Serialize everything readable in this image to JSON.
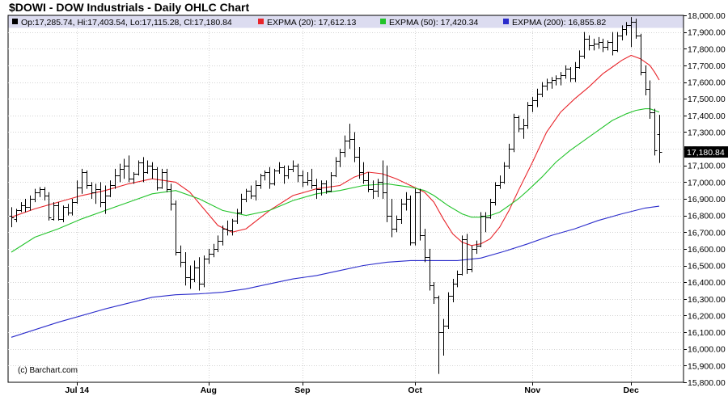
{
  "chart_data": {
    "type": "ohlc",
    "title": "$DOWI - DOW Industrials - Daily OHLC Chart",
    "credit": "(c) Barchart.com",
    "legend": {
      "ohlc": "Op:17,285.74, Hi:17,403.54, Lo:17,115.28, Cl:17,180.84",
      "series_labels": [
        "EXPMA (20): 17,612.13",
        "EXPMA (50): 17,420.34",
        "EXPMA (200): 16,855.82"
      ]
    },
    "colors": {
      "background": "#ffffff",
      "legend_bar": "#dcdcf0",
      "grid": "#d3d3d3",
      "ohlc_bar": "#000000",
      "expma20": "#e8242a",
      "expma50": "#22c32a",
      "expma200": "#2b2ccb",
      "last_price_bg": "#000000"
    },
    "y_axis": {
      "min": 15800,
      "max": 18000,
      "step": 100,
      "position": "right",
      "tick_labels": [
        "18,000.00",
        "17,900.00",
        "17,800.00",
        "17,700.00",
        "17,600.00",
        "17,500.00",
        "17,400.00",
        "17,300.00",
        "17,200.00",
        "17,100.00",
        "17,000.00",
        "16,900.00",
        "16,800.00",
        "16,700.00",
        "16,600.00",
        "16,500.00",
        "16,400.00",
        "16,300.00",
        "16,200.00",
        "16,100.00",
        "16,000.00",
        "15,900.00",
        "15,800.00"
      ]
    },
    "x_axis": {
      "labels": [
        {
          "text": "Jul 14",
          "bar": 14
        },
        {
          "text": "Aug",
          "bar": 42
        },
        {
          "text": "Sep",
          "bar": 62
        },
        {
          "text": "Oct",
          "bar": 86
        },
        {
          "text": "Nov",
          "bar": 111
        },
        {
          "text": "Dec",
          "bar": 132
        }
      ]
    },
    "last_price_label": "17,180.84",
    "grid": true,
    "ohlc": [
      [
        16800,
        16850,
        16730,
        16790
      ],
      [
        16780,
        16840,
        16760,
        16830
      ],
      [
        16830,
        16880,
        16820,
        16860
      ],
      [
        16860,
        16900,
        16820,
        16850
      ],
      [
        16850,
        16920,
        16830,
        16900
      ],
      [
        16900,
        16960,
        16880,
        16940
      ],
      [
        16940,
        16970,
        16910,
        16960
      ],
      [
        16960,
        16970,
        16890,
        16920
      ],
      [
        16920,
        16940,
        16770,
        16790
      ],
      [
        16780,
        16880,
        16770,
        16860
      ],
      [
        16860,
        16880,
        16770,
        16780
      ],
      [
        16780,
        16860,
        16760,
        16850
      ],
      [
        16850,
        16870,
        16800,
        16820
      ],
      [
        16820,
        16900,
        16800,
        16880
      ],
      [
        16880,
        17010,
        16870,
        16970
      ],
      [
        16970,
        17080,
        16930,
        17060
      ],
      [
        17060,
        17070,
        16960,
        16980
      ],
      [
        16980,
        17000,
        16900,
        16940
      ],
      [
        16940,
        16990,
        16870,
        16960
      ],
      [
        16960,
        17000,
        16850,
        16880
      ],
      [
        16880,
        16980,
        16810,
        16920
      ],
      [
        16920,
        17010,
        16910,
        16980
      ],
      [
        16980,
        17080,
        16960,
        17040
      ],
      [
        17040,
        17110,
        17000,
        17080
      ],
      [
        17080,
        17140,
        17020,
        17100
      ],
      [
        17100,
        17160,
        17000,
        17020
      ],
      [
        17020,
        17060,
        16990,
        17050
      ],
      [
        17050,
        17130,
        17040,
        17120
      ],
      [
        17120,
        17150,
        17000,
        17060
      ],
      [
        17060,
        17130,
        17050,
        17100
      ],
      [
        17100,
        17120,
        17020,
        17080
      ],
      [
        17080,
        17090,
        16950,
        16970
      ],
      [
        16970,
        17080,
        16960,
        17060
      ],
      [
        17060,
        17080,
        16940,
        16960
      ],
      [
        16960,
        16990,
        16830,
        16870
      ],
      [
        16870,
        16890,
        16560,
        16580
      ],
      [
        16580,
        16620,
        16490,
        16520
      ],
      [
        16520,
        16580,
        16380,
        16430
      ],
      [
        16430,
        16500,
        16360,
        16420
      ],
      [
        16420,
        16530,
        16400,
        16490
      ],
      [
        16490,
        16550,
        16350,
        16390
      ],
      [
        16390,
        16560,
        16370,
        16540
      ],
      [
        16540,
        16600,
        16510,
        16570
      ],
      [
        16570,
        16630,
        16550,
        16600
      ],
      [
        16600,
        16680,
        16580,
        16650
      ],
      [
        16650,
        16740,
        16620,
        16720
      ],
      [
        16720,
        16770,
        16680,
        16710
      ],
      [
        16710,
        16780,
        16680,
        16770
      ],
      [
        16770,
        16840,
        16750,
        16820
      ],
      [
        16820,
        16930,
        16810,
        16900
      ],
      [
        16900,
        16960,
        16880,
        16950
      ],
      [
        16950,
        16980,
        16900,
        16920
      ],
      [
        16920,
        17010,
        16890,
        16980
      ],
      [
        16980,
        17050,
        16960,
        17040
      ],
      [
        17040,
        17070,
        17010,
        17060
      ],
      [
        17060,
        17090,
        16960,
        16990
      ],
      [
        16990,
        17080,
        16980,
        17070
      ],
      [
        17070,
        17120,
        17050,
        17090
      ],
      [
        17090,
        17100,
        16990,
        17040
      ],
      [
        17040,
        17100,
        17020,
        17080
      ],
      [
        17080,
        17130,
        17060,
        17100
      ],
      [
        17100,
        17110,
        17000,
        17040
      ],
      [
        17040,
        17070,
        16970,
        17000
      ],
      [
        17000,
        17060,
        16980,
        17010
      ],
      [
        17010,
        17080,
        16960,
        16980
      ],
      [
        16980,
        17020,
        16900,
        16960
      ],
      [
        16960,
        17010,
        16920,
        16990
      ],
      [
        16990,
        17010,
        16930,
        16950
      ],
      [
        16950,
        17060,
        16940,
        17040
      ],
      [
        17040,
        17150,
        17030,
        17130
      ],
      [
        17130,
        17200,
        17090,
        17180
      ],
      [
        17180,
        17280,
        17150,
        17250
      ],
      [
        17250,
        17350,
        17200,
        17260
      ],
      [
        17260,
        17300,
        17120,
        17150
      ],
      [
        17150,
        17210,
        17020,
        17060
      ],
      [
        17060,
        17120,
        16990,
        17010
      ],
      [
        17010,
        17060,
        16940,
        16960
      ],
      [
        16960,
        17010,
        16900,
        16950
      ],
      [
        16950,
        17020,
        16910,
        17000
      ],
      [
        17000,
        17130,
        16900,
        16940
      ],
      [
        16940,
        17100,
        16760,
        16800
      ],
      [
        16800,
        16900,
        16670,
        16720
      ],
      [
        16720,
        16800,
        16700,
        16780
      ],
      [
        16780,
        16900,
        16750,
        16870
      ],
      [
        16870,
        16940,
        16830,
        16900
      ],
      [
        16900,
        16920,
        16620,
        16640
      ],
      [
        16640,
        16960,
        16620,
        16940
      ],
      [
        16940,
        16960,
        16650,
        16680
      ],
      [
        16680,
        16720,
        16520,
        16550
      ],
      [
        16550,
        16600,
        16350,
        16380
      ],
      [
        16380,
        16400,
        16270,
        16310
      ],
      [
        16310,
        16320,
        15850,
        16100
      ],
      [
        16100,
        16180,
        15960,
        16140
      ],
      [
        16140,
        16340,
        16120,
        16320
      ],
      [
        16320,
        16420,
        16280,
        16390
      ],
      [
        16390,
        16470,
        16370,
        16450
      ],
      [
        16450,
        16680,
        16440,
        16660
      ],
      [
        16660,
        16690,
        16450,
        16480
      ],
      [
        16480,
        16620,
        16460,
        16600
      ],
      [
        16600,
        16650,
        16570,
        16620
      ],
      [
        16620,
        16820,
        16610,
        16800
      ],
      [
        16800,
        16820,
        16700,
        16790
      ],
      [
        16790,
        16900,
        16780,
        16880
      ],
      [
        16880,
        17000,
        16860,
        16980
      ],
      [
        16980,
        17040,
        16960,
        17000
      ],
      [
        17000,
        17120,
        16990,
        17100
      ],
      [
        17100,
        17230,
        17080,
        17200
      ],
      [
        17200,
        17410,
        17180,
        17390
      ],
      [
        17390,
        17400,
        17300,
        17320
      ],
      [
        17320,
        17380,
        17260,
        17340
      ],
      [
        17340,
        17480,
        17320,
        17460
      ],
      [
        17460,
        17510,
        17420,
        17490
      ],
      [
        17490,
        17560,
        17450,
        17530
      ],
      [
        17530,
        17600,
        17510,
        17580
      ],
      [
        17580,
        17620,
        17550,
        17600
      ],
      [
        17600,
        17630,
        17560,
        17610
      ],
      [
        17610,
        17640,
        17580,
        17620
      ],
      [
        17620,
        17660,
        17580,
        17640
      ],
      [
        17640,
        17700,
        17620,
        17680
      ],
      [
        17680,
        17690,
        17600,
        17620
      ],
      [
        17620,
        17720,
        17600,
        17690
      ],
      [
        17690,
        17790,
        17680,
        17760
      ],
      [
        17760,
        17900,
        17740,
        17860
      ],
      [
        17860,
        17880,
        17790,
        17820
      ],
      [
        17820,
        17860,
        17790,
        17830
      ],
      [
        17830,
        17870,
        17800,
        17840
      ],
      [
        17840,
        17860,
        17780,
        17810
      ],
      [
        17810,
        17850,
        17790,
        17840
      ],
      [
        17840,
        17900,
        17760,
        17790
      ],
      [
        17790,
        17900,
        17780,
        17880
      ],
      [
        17880,
        17940,
        17850,
        17920
      ],
      [
        17920,
        17960,
        17880,
        17940
      ],
      [
        17940,
        17990,
        17810,
        17960
      ],
      [
        17960,
        17980,
        17860,
        17880
      ],
      [
        17880,
        17890,
        17640,
        17660
      ],
      [
        17660,
        17700,
        17520,
        17560
      ],
      [
        17560,
        17610,
        17380,
        17420
      ],
      [
        17420,
        17440,
        17160,
        17190
      ],
      [
        17285.74,
        17403.54,
        17115.28,
        17180.84
      ]
    ],
    "series": [
      {
        "name": "EXPMA (20): 17,612.13",
        "color": "#e8242a",
        "x": [
          0,
          5,
          10,
          15,
          20,
          25,
          30,
          35,
          38,
          41,
          44,
          47,
          50,
          55,
          60,
          65,
          70,
          73,
          76,
          79,
          82,
          85,
          88,
          90,
          92,
          94,
          96,
          98,
          100,
          102,
          104,
          106,
          108,
          111,
          114,
          117,
          120,
          123,
          126,
          128,
          130,
          132,
          134,
          136,
          137,
          138
        ],
        "values": [
          16790,
          16840,
          16880,
          16920,
          16950,
          16990,
          17020,
          17000,
          16940,
          16840,
          16740,
          16700,
          16720,
          16830,
          16920,
          16960,
          16980,
          17030,
          17060,
          17050,
          17020,
          16980,
          16940,
          16880,
          16780,
          16690,
          16640,
          16620,
          16630,
          16660,
          16730,
          16830,
          16950,
          17120,
          17300,
          17420,
          17500,
          17570,
          17650,
          17690,
          17730,
          17760,
          17740,
          17700,
          17660,
          17612.13
        ]
      },
      {
        "name": "EXPMA (50): 17,420.34",
        "color": "#22c32a",
        "x": [
          0,
          5,
          10,
          15,
          20,
          25,
          30,
          35,
          40,
          45,
          50,
          55,
          60,
          65,
          70,
          75,
          80,
          85,
          88,
          90,
          93,
          96,
          98,
          100,
          102,
          104,
          106,
          108,
          110,
          113,
          116,
          119,
          122,
          125,
          128,
          131,
          133,
          135,
          136,
          137,
          138
        ],
        "values": [
          16580,
          16670,
          16720,
          16780,
          16830,
          16880,
          16930,
          16950,
          16900,
          16830,
          16800,
          16830,
          16890,
          16930,
          16950,
          16980,
          16990,
          16970,
          16950,
          16920,
          16860,
          16810,
          16790,
          16790,
          16800,
          16820,
          16860,
          16900,
          16950,
          17030,
          17120,
          17190,
          17250,
          17310,
          17370,
          17410,
          17430,
          17440,
          17440,
          17430,
          17420.34
        ]
      },
      {
        "name": "EXPMA (200): 16,855.82",
        "color": "#2b2ccb",
        "x": [
          0,
          10,
          20,
          30,
          35,
          40,
          45,
          50,
          55,
          60,
          65,
          70,
          75,
          80,
          85,
          90,
          95,
          100,
          105,
          110,
          115,
          120,
          125,
          130,
          135,
          138
        ],
        "values": [
          16070,
          16160,
          16240,
          16310,
          16325,
          16330,
          16340,
          16360,
          16390,
          16420,
          16440,
          16470,
          16500,
          16520,
          16530,
          16530,
          16530,
          16545,
          16585,
          16630,
          16680,
          16720,
          16770,
          16810,
          16845,
          16855.82
        ]
      }
    ]
  }
}
